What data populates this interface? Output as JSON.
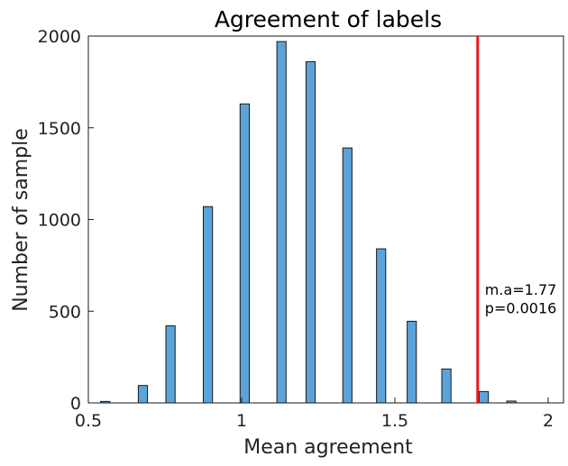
{
  "chart_data": {
    "type": "bar",
    "title": "Agreement of labels",
    "xlabel": "Mean agreement",
    "ylabel": "Number of sample",
    "xlim": [
      0.5,
      2.05
    ],
    "ylim": [
      0,
      2000
    ],
    "xticks": [
      0.5,
      1,
      1.5,
      2
    ],
    "xtick_labels": [
      "0.5",
      "1",
      "1.5",
      "2"
    ],
    "yticks": [
      0,
      500,
      1000,
      1500,
      2000
    ],
    "ytick_labels": [
      "0",
      "500",
      "1000",
      "1500",
      "2000"
    ],
    "bin_width": 0.03,
    "x": [
      0.555,
      0.678,
      0.768,
      0.89,
      1.01,
      1.13,
      1.225,
      1.345,
      1.455,
      1.555,
      1.668,
      1.79,
      1.88
    ],
    "values": [
      8,
      95,
      420,
      1070,
      1630,
      1970,
      1860,
      1390,
      840,
      445,
      185,
      62,
      10
    ],
    "bar_color": "#5ba3d9",
    "bar_edge": "#1a1a1a",
    "grid": false,
    "reference_line": {
      "x": 1.77,
      "color": "#e8191d",
      "label_line1": "m.a=1.77",
      "label_line2": "p=0.0016"
    }
  }
}
